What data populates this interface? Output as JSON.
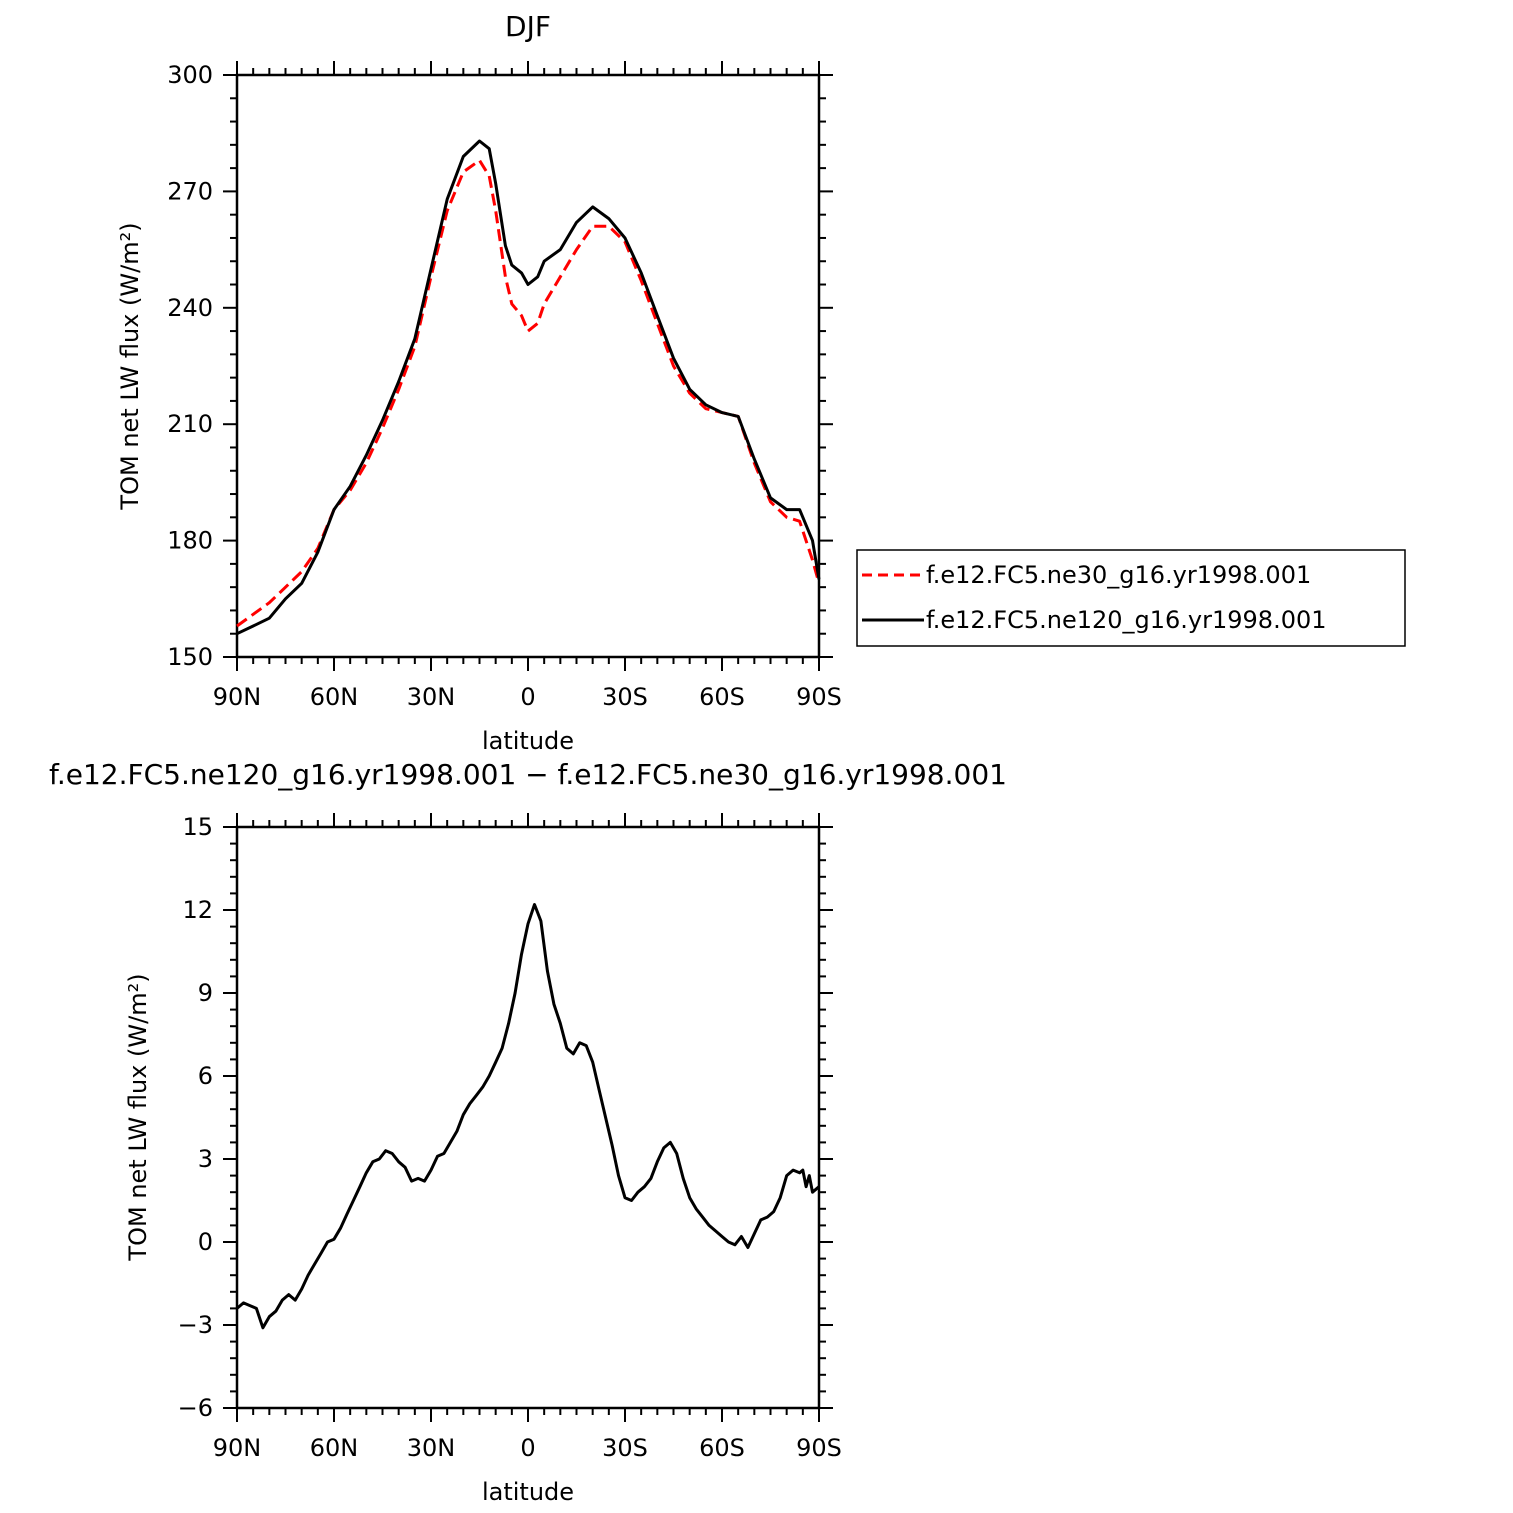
{
  "chart_data": [
    {
      "type": "line",
      "title": "DJF",
      "xlabel": "latitude",
      "ylabel": "TOM net LW flux (W/m²)",
      "xlim": [
        90,
        -90
      ],
      "ylim": [
        150,
        300
      ],
      "yticks": [
        150,
        180,
        210,
        240,
        270,
        300
      ],
      "xticks": [
        90,
        60,
        30,
        0,
        -30,
        -60,
        -90
      ],
      "xtick_labels": [
        "90N",
        "60N",
        "30N",
        "0",
        "30S",
        "60S",
        "90S"
      ],
      "legend_position": "right",
      "x": [
        90,
        85,
        80,
        75,
        70,
        65,
        60,
        55,
        50,
        45,
        40,
        35,
        30,
        25,
        20,
        15,
        12,
        10,
        7,
        5,
        2,
        0,
        -3,
        -5,
        -10,
        -15,
        -20,
        -25,
        -30,
        -35,
        -40,
        -45,
        -50,
        -55,
        -60,
        -65,
        -70,
        -75,
        -80,
        -84,
        -88,
        -90
      ],
      "series": [
        {
          "name": "f.e12.FC5.ne30_g16.yr1998.001",
          "color": "#ff0000",
          "dash": "dashed",
          "values": [
            158,
            161,
            164,
            168,
            172,
            178,
            188,
            193,
            200,
            209,
            219,
            230,
            248,
            265,
            275,
            278,
            274,
            265,
            248,
            241,
            238,
            234,
            236,
            241,
            248,
            255,
            261,
            261,
            257,
            247,
            236,
            225,
            218,
            214,
            213,
            212,
            200,
            190,
            186,
            185,
            175,
            169
          ]
        },
        {
          "name": "f.e12.FC5.ne120_g16.yr1998.001",
          "color": "#000000",
          "dash": "solid",
          "values": [
            156,
            158,
            160,
            165,
            169,
            177,
            188,
            194,
            202,
            211,
            221,
            232,
            250,
            268,
            279,
            283,
            281,
            272,
            256,
            251,
            249,
            246,
            248,
            252,
            255,
            262,
            266,
            263,
            258,
            249,
            238,
            227,
            219,
            215,
            213,
            212,
            201,
            191,
            188,
            188,
            180,
            170
          ]
        }
      ]
    },
    {
      "type": "line",
      "title": "f.e12.FC5.ne120_g16.yr1998.001 − f.e12.FC5.ne30_g16.yr1998.001",
      "xlabel": "latitude",
      "ylabel": "TOM net LW flux (W/m²)",
      "xlim": [
        90,
        -90
      ],
      "ylim": [
        -6,
        15
      ],
      "yticks": [
        -6,
        -3,
        0,
        3,
        6,
        9,
        12,
        15
      ],
      "ytick_labels": [
        "−6",
        "−3",
        "0",
        "3",
        "6",
        "9",
        "12",
        "15"
      ],
      "xticks": [
        90,
        60,
        30,
        0,
        -30,
        -60,
        -90
      ],
      "xtick_labels": [
        "90N",
        "60N",
        "30N",
        "0",
        "30S",
        "60S",
        "90S"
      ],
      "x": [
        90,
        88,
        86,
        84,
        82,
        80,
        78,
        76,
        74,
        72,
        70,
        68,
        66,
        64,
        62,
        60,
        58,
        56,
        54,
        52,
        50,
        48,
        46,
        44,
        42,
        40,
        38,
        36,
        34,
        32,
        30,
        28,
        26,
        24,
        22,
        20,
        18,
        16,
        14,
        12,
        10,
        8,
        6,
        4,
        2,
        0,
        -2,
        -4,
        -6,
        -8,
        -10,
        -12,
        -14,
        -16,
        -18,
        -20,
        -22,
        -24,
        -26,
        -28,
        -30,
        -32,
        -34,
        -36,
        -38,
        -40,
        -42,
        -44,
        -46,
        -48,
        -50,
        -52,
        -54,
        -56,
        -58,
        -60,
        -62,
        -64,
        -66,
        -68,
        -70,
        -72,
        -74,
        -76,
        -78,
        -80,
        -82,
        -84,
        -85,
        -86,
        -87,
        -88,
        -90
      ],
      "series": [
        {
          "name": "",
          "color": "#000000",
          "dash": "solid",
          "values": [
            -2.4,
            -2.2,
            -2.3,
            -2.4,
            -3.1,
            -2.7,
            -2.5,
            -2.1,
            -1.9,
            -2.1,
            -1.7,
            -1.2,
            -0.8,
            -0.4,
            0.0,
            0.1,
            0.5,
            1.0,
            1.5,
            2.0,
            2.5,
            2.9,
            3.0,
            3.3,
            3.2,
            2.9,
            2.7,
            2.2,
            2.3,
            2.2,
            2.6,
            3.1,
            3.2,
            3.6,
            4.0,
            4.6,
            5.0,
            5.3,
            5.6,
            6.0,
            6.5,
            7.0,
            7.9,
            9.0,
            10.4,
            11.5,
            12.2,
            11.6,
            9.8,
            8.6,
            7.9,
            7.0,
            6.8,
            7.2,
            7.1,
            6.5,
            5.5,
            4.5,
            3.5,
            2.4,
            1.6,
            1.5,
            1.8,
            2.0,
            2.3,
            2.9,
            3.4,
            3.6,
            3.2,
            2.3,
            1.6,
            1.2,
            0.9,
            0.6,
            0.4,
            0.2,
            0.0,
            -0.1,
            0.2,
            -0.2,
            0.3,
            0.8,
            0.9,
            1.1,
            1.6,
            2.4,
            2.6,
            2.5,
            2.6,
            2.0,
            2.4,
            1.8,
            2.0
          ]
        }
      ]
    }
  ]
}
